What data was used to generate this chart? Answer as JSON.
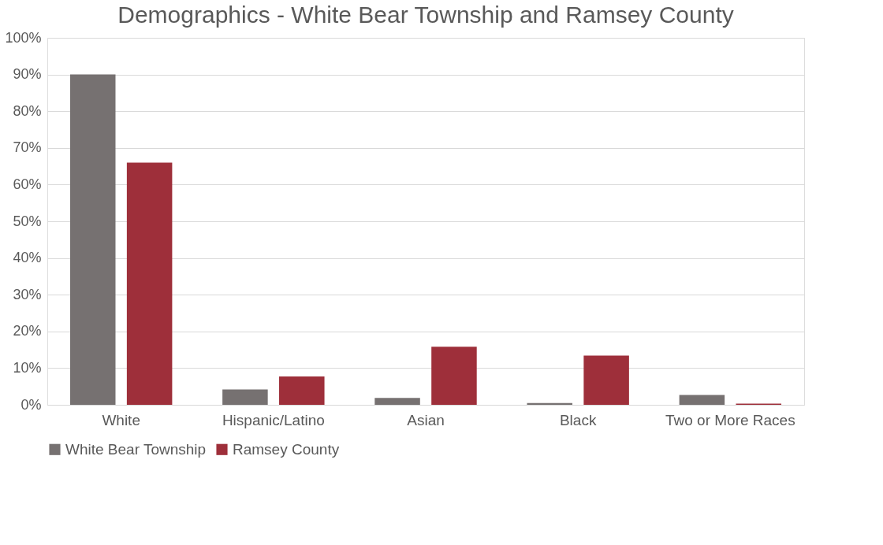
{
  "chart_data": {
    "type": "bar",
    "title": "Demographics - White Bear Township and Ramsey County",
    "categories": [
      "White",
      "Hispanic/Latino",
      "Asian",
      "Black",
      "Two or More Races"
    ],
    "series": [
      {
        "name": "White Bear Township",
        "color": "#767171",
        "values": [
          90,
          4.2,
          1.9,
          0.5,
          2.7
        ]
      },
      {
        "name": "Ramsey County",
        "color": "#9e2f3a",
        "values": [
          66,
          7.7,
          15.8,
          13.4,
          0.3
        ]
      }
    ],
    "ylim": [
      0,
      100
    ],
    "yticks": [
      {
        "value": 0,
        "label": "0%"
      },
      {
        "value": 10,
        "label": "10%"
      },
      {
        "value": 20,
        "label": "20%"
      },
      {
        "value": 30,
        "label": "30%"
      },
      {
        "value": 40,
        "label": "40%"
      },
      {
        "value": 50,
        "label": "50%"
      },
      {
        "value": 60,
        "label": "60%"
      },
      {
        "value": 70,
        "label": "70%"
      },
      {
        "value": 80,
        "label": "80%"
      },
      {
        "value": 90,
        "label": "90%"
      },
      {
        "value": 100,
        "label": "100%"
      }
    ],
    "grid": "y",
    "legend": "bottom"
  }
}
